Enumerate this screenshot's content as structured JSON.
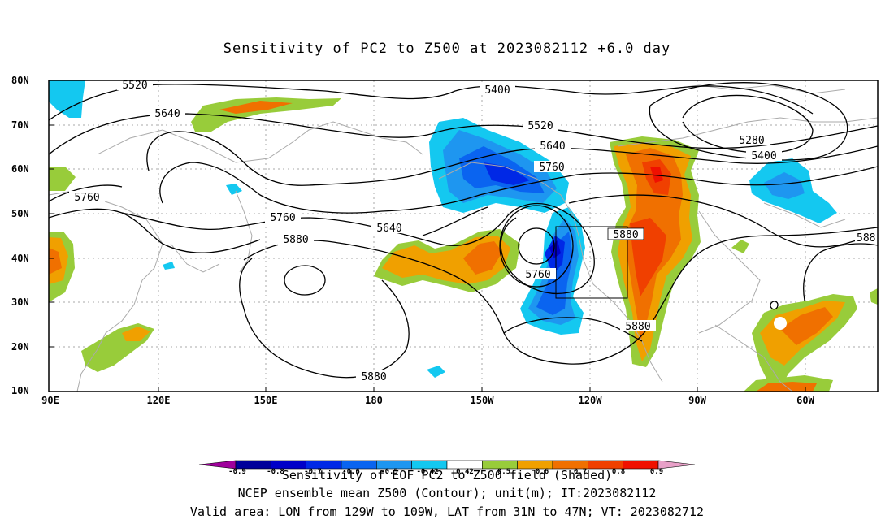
{
  "title": "Sensitivity of PC2 to Z500 at 2023082112 +6.0 day",
  "lat_labels": [
    "80N",
    "70N",
    "60N",
    "50N",
    "40N",
    "30N",
    "20N",
    "10N"
  ],
  "lon_labels": [
    "90E",
    "120E",
    "150E",
    "180",
    "150W",
    "120W",
    "90W",
    "60W"
  ],
  "contour_labels": [
    "5520",
    "5400",
    "5640",
    "5520",
    "5280",
    "5640",
    "5400",
    "5760",
    "5760",
    "5760",
    "5640",
    "5880",
    "5880",
    "5760",
    "5880",
    "5880",
    "588"
  ],
  "colorbar": {
    "ticks": [
      "-0.9",
      "-0.8",
      "-0.7",
      "-0.6",
      "-0.5",
      "-0.42",
      "0.42",
      "0.5",
      "0.6",
      "0.7",
      "0.8",
      "0.9"
    ],
    "colors": [
      "#a0009c",
      "#00009a",
      "#0000c8",
      "#0028e6",
      "#0a64f0",
      "#1e96f0",
      "#14c8f0",
      "#ffffff",
      "#98cc3a",
      "#f0a000",
      "#f07000",
      "#f04000",
      "#f01000",
      "#e8a0c8"
    ],
    "title": "Sensitivity of EOF PC2 to Z500 field (Shaded)"
  },
  "footer": {
    "line1": "NCEP ensemble mean Z500 (Contour); unit(m); IT:2023082112",
    "line2": "Valid area: LON from 129W to 109W, LAT from 31N to 47N; VT: 2023082712"
  }
}
